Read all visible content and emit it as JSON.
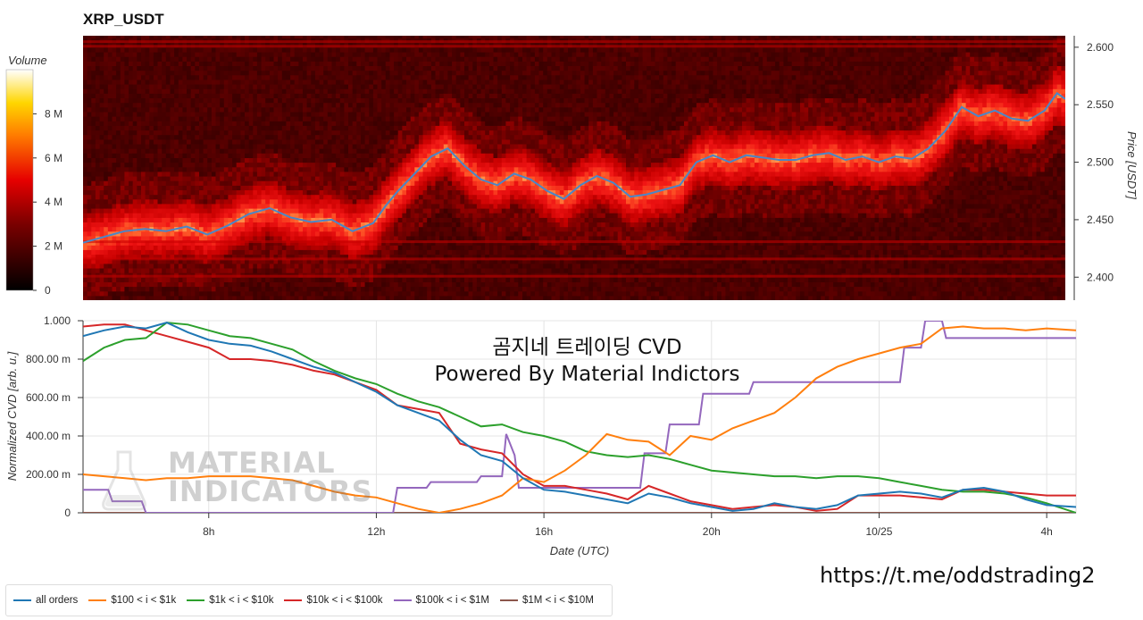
{
  "title": "XRP_USDT",
  "watermark": {
    "line1": "곰지네 트레이딩 CVD",
    "line2": "Powered By Material Indictors",
    "logo_line1": "MATERIAL",
    "logo_line2": "INDICATORS"
  },
  "url": "https://t.me/oddstrading2",
  "colorbar": {
    "label": "Volume",
    "ticks": [
      "0",
      "2 M",
      "4 M",
      "6 M",
      "8 M"
    ],
    "tick_values": [
      0,
      2,
      4,
      6,
      8
    ],
    "max": 10
  },
  "chart_data": [
    {
      "type": "heatmap",
      "title": "XRP_USDT",
      "ylabel": "Price [USDT]",
      "ylim": [
        2.38,
        2.61
      ],
      "yticks": [
        "2.400",
        "2.450",
        "2.500",
        "2.550",
        "2.600"
      ],
      "ytick_values": [
        2.4,
        2.45,
        2.5,
        2.55,
        2.6
      ],
      "xlim": [
        5.0,
        28.7
      ],
      "price_line": {
        "color": "#4a86c8",
        "x": [
          5.0,
          5.5,
          6.0,
          6.5,
          7.0,
          7.5,
          8.0,
          8.5,
          9.0,
          9.5,
          10.0,
          10.5,
          11.0,
          11.5,
          12.0,
          12.3,
          12.6,
          13.0,
          13.4,
          13.8,
          14.2,
          14.6,
          15.0,
          15.4,
          15.8,
          16.2,
          16.6,
          17.0,
          17.4,
          17.8,
          18.2,
          18.6,
          19.0,
          19.4,
          19.8,
          20.2,
          20.6,
          21.0,
          21.4,
          21.8,
          22.2,
          22.6,
          23.0,
          23.4,
          23.8,
          24.2,
          24.6,
          25.0,
          25.4,
          25.8,
          26.2,
          26.6,
          27.0,
          27.4,
          27.8,
          28.2,
          28.5,
          28.7
        ],
        "y": [
          2.43,
          2.435,
          2.44,
          2.442,
          2.44,
          2.444,
          2.437,
          2.445,
          2.455,
          2.46,
          2.452,
          2.448,
          2.45,
          2.44,
          2.447,
          2.462,
          2.475,
          2.49,
          2.505,
          2.512,
          2.497,
          2.485,
          2.48,
          2.49,
          2.485,
          2.475,
          2.468,
          2.48,
          2.488,
          2.482,
          2.47,
          2.472,
          2.476,
          2.48,
          2.5,
          2.506,
          2.5,
          2.506,
          2.504,
          2.502,
          2.502,
          2.506,
          2.508,
          2.502,
          2.505,
          2.5,
          2.505,
          2.503,
          2.512,
          2.527,
          2.548,
          2.54,
          2.545,
          2.538,
          2.536,
          2.545,
          2.56,
          2.555
        ]
      }
    },
    {
      "type": "line",
      "xlabel": "Date (UTC)",
      "ylabel": "Normalized CVD [arb. u.]",
      "xlim": [
        5.0,
        28.7
      ],
      "ylim": [
        0,
        1
      ],
      "xticks": [
        "8h",
        "12h",
        "16h",
        "20h",
        "10/25",
        "4h"
      ],
      "xtick_values": [
        8,
        12,
        16,
        20,
        24,
        28
      ],
      "yticks": [
        "0",
        "200.00 m",
        "400.00 m",
        "600.00 m",
        "800.00 m",
        "1.000"
      ],
      "ytick_values": [
        0,
        0.2,
        0.4,
        0.6,
        0.8,
        1.0
      ],
      "series": [
        {
          "name": "all orders",
          "color": "#1f77b4",
          "x": [
            5.0,
            5.5,
            6.0,
            6.5,
            7.0,
            7.5,
            8.0,
            8.5,
            9.0,
            9.5,
            10.0,
            10.5,
            11.0,
            11.5,
            12.0,
            12.5,
            13.0,
            13.5,
            14.0,
            14.5,
            15.0,
            15.5,
            16.0,
            16.5,
            17.0,
            17.5,
            18.0,
            18.5,
            19.0,
            19.5,
            20.0,
            20.5,
            21.0,
            21.5,
            22.0,
            22.5,
            23.0,
            23.5,
            24.0,
            24.5,
            25.0,
            25.5,
            26.0,
            26.5,
            27.0,
            27.5,
            28.0,
            28.7
          ],
          "y": [
            0.92,
            0.95,
            0.97,
            0.96,
            0.99,
            0.94,
            0.9,
            0.88,
            0.87,
            0.84,
            0.8,
            0.76,
            0.73,
            0.68,
            0.63,
            0.56,
            0.52,
            0.48,
            0.38,
            0.3,
            0.27,
            0.18,
            0.12,
            0.11,
            0.09,
            0.07,
            0.05,
            0.1,
            0.08,
            0.05,
            0.03,
            0.01,
            0.02,
            0.05,
            0.03,
            0.02,
            0.04,
            0.09,
            0.1,
            0.11,
            0.1,
            0.08,
            0.12,
            0.13,
            0.11,
            0.07,
            0.04,
            0.03
          ]
        },
        {
          "name": "$100 < i < $1k",
          "color": "#ff7f0e",
          "x": [
            5.0,
            5.5,
            6.0,
            6.5,
            7.0,
            7.5,
            8.0,
            8.5,
            9.0,
            9.5,
            10.0,
            10.5,
            11.0,
            11.5,
            12.0,
            12.5,
            13.0,
            13.5,
            14.0,
            14.5,
            15.0,
            15.5,
            16.0,
            16.5,
            17.0,
            17.5,
            18.0,
            18.5,
            19.0,
            19.5,
            20.0,
            20.5,
            21.0,
            21.5,
            22.0,
            22.5,
            23.0,
            23.5,
            24.0,
            24.5,
            25.0,
            25.5,
            26.0,
            26.5,
            27.0,
            27.5,
            28.0,
            28.7
          ],
          "y": [
            0.2,
            0.19,
            0.18,
            0.17,
            0.18,
            0.18,
            0.19,
            0.19,
            0.19,
            0.18,
            0.17,
            0.14,
            0.11,
            0.09,
            0.08,
            0.05,
            0.02,
            0.0,
            0.02,
            0.05,
            0.09,
            0.18,
            0.16,
            0.22,
            0.3,
            0.41,
            0.38,
            0.37,
            0.3,
            0.4,
            0.38,
            0.44,
            0.48,
            0.52,
            0.6,
            0.7,
            0.76,
            0.8,
            0.83,
            0.86,
            0.88,
            0.96,
            0.97,
            0.96,
            0.96,
            0.95,
            0.96,
            0.95
          ]
        },
        {
          "name": "$1k < i < $10k",
          "color": "#2ca02c",
          "x": [
            5.0,
            5.5,
            6.0,
            6.5,
            7.0,
            7.5,
            8.0,
            8.5,
            9.0,
            9.5,
            10.0,
            10.5,
            11.0,
            11.5,
            12.0,
            12.5,
            13.0,
            13.5,
            14.0,
            14.5,
            15.0,
            15.5,
            16.0,
            16.5,
            17.0,
            17.5,
            18.0,
            18.5,
            19.0,
            19.5,
            20.0,
            20.5,
            21.0,
            21.5,
            22.0,
            22.5,
            23.0,
            23.5,
            24.0,
            24.5,
            25.0,
            25.5,
            26.0,
            26.5,
            27.0,
            27.5,
            28.0,
            28.7
          ],
          "y": [
            0.79,
            0.86,
            0.9,
            0.91,
            0.99,
            0.98,
            0.95,
            0.92,
            0.91,
            0.88,
            0.85,
            0.79,
            0.74,
            0.7,
            0.67,
            0.62,
            0.58,
            0.55,
            0.5,
            0.45,
            0.46,
            0.42,
            0.4,
            0.37,
            0.32,
            0.3,
            0.29,
            0.3,
            0.28,
            0.25,
            0.22,
            0.21,
            0.2,
            0.19,
            0.19,
            0.18,
            0.19,
            0.19,
            0.18,
            0.16,
            0.14,
            0.12,
            0.11,
            0.11,
            0.1,
            0.08,
            0.05,
            0.0
          ]
        },
        {
          "name": "$10k < i < $100k",
          "color": "#d62728",
          "x": [
            5.0,
            5.5,
            6.0,
            6.5,
            7.0,
            7.5,
            8.0,
            8.5,
            9.0,
            9.5,
            10.0,
            10.5,
            11.0,
            11.5,
            12.0,
            12.5,
            13.0,
            13.5,
            14.0,
            14.5,
            15.0,
            15.5,
            16.0,
            16.5,
            17.0,
            17.5,
            18.0,
            18.5,
            19.0,
            19.5,
            20.0,
            20.5,
            21.0,
            21.5,
            22.0,
            22.5,
            23.0,
            23.5,
            24.0,
            24.5,
            25.0,
            25.5,
            26.0,
            26.5,
            27.0,
            27.5,
            28.0,
            28.7
          ],
          "y": [
            0.97,
            0.98,
            0.98,
            0.95,
            0.92,
            0.89,
            0.86,
            0.8,
            0.8,
            0.79,
            0.77,
            0.74,
            0.72,
            0.68,
            0.64,
            0.56,
            0.54,
            0.52,
            0.36,
            0.33,
            0.31,
            0.2,
            0.14,
            0.14,
            0.12,
            0.1,
            0.07,
            0.14,
            0.1,
            0.06,
            0.04,
            0.02,
            0.03,
            0.04,
            0.03,
            0.01,
            0.02,
            0.09,
            0.09,
            0.09,
            0.08,
            0.07,
            0.12,
            0.12,
            0.11,
            0.1,
            0.09,
            0.09
          ]
        },
        {
          "name": "$100k < i < $1M",
          "color": "#9467bd",
          "x": [
            5.0,
            5.6,
            5.7,
            6.4,
            6.5,
            12.4,
            12.5,
            13.2,
            13.3,
            14.4,
            14.5,
            15.0,
            15.1,
            15.3,
            15.4,
            16.7,
            16.8,
            18.3,
            18.4,
            18.9,
            19.0,
            19.7,
            19.8,
            20.9,
            21.0,
            24.5,
            24.6,
            25.0,
            25.1,
            25.5,
            25.6,
            28.7
          ],
          "y": [
            0.12,
            0.12,
            0.06,
            0.06,
            0.0,
            0.0,
            0.13,
            0.13,
            0.16,
            0.16,
            0.19,
            0.19,
            0.41,
            0.3,
            0.13,
            0.13,
            0.13,
            0.13,
            0.31,
            0.31,
            0.46,
            0.46,
            0.62,
            0.62,
            0.68,
            0.68,
            0.86,
            0.86,
            1.0,
            1.0,
            0.91,
            0.91
          ]
        },
        {
          "name": "$1M < i < $10M",
          "color": "#8c564b",
          "x": [
            5.0,
            28.7
          ],
          "y": [
            0.0,
            0.0
          ]
        }
      ]
    }
  ]
}
